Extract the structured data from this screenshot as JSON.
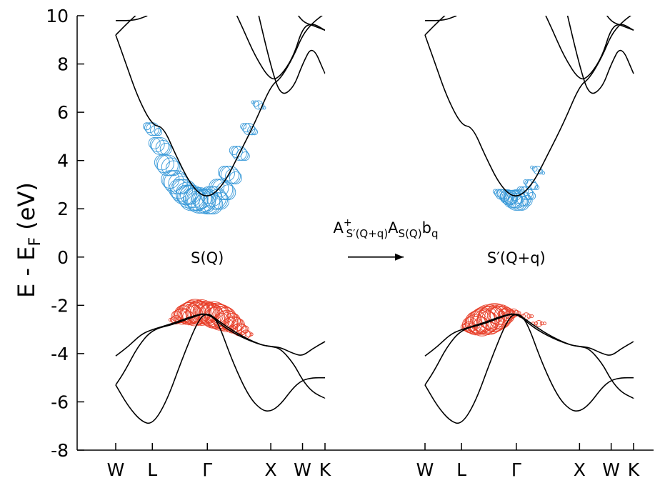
{
  "chart_data": {
    "type": "line",
    "ylabel": {
      "main": "E - E",
      "sub": "F",
      "tail": " (eV)"
    },
    "ylim": [
      -8,
      10
    ],
    "yticks": [
      -8,
      -6,
      -4,
      -2,
      0,
      2,
      4,
      6,
      8,
      10
    ],
    "grid": false,
    "kpath": [
      "W",
      "L",
      "Γ",
      "X",
      "W",
      "K"
    ],
    "kpos": [
      0,
      0.577,
      1.443,
      2.443,
      2.943,
      3.297
    ],
    "panels": [
      {
        "label": "S(Q)",
        "highlight_conduction": [
          [
            0.58,
            5.3,
            1.0
          ],
          [
            0.7,
            4.6,
            1.6
          ],
          [
            0.82,
            3.8,
            2.1
          ],
          [
            0.95,
            3.1,
            2.5
          ],
          [
            1.08,
            2.7,
            2.7
          ],
          [
            1.2,
            2.45,
            2.8
          ],
          [
            1.32,
            2.35,
            2.8
          ],
          [
            1.443,
            2.3,
            2.7
          ],
          [
            1.56,
            2.45,
            2.4
          ],
          [
            1.68,
            2.8,
            2.1
          ],
          [
            1.8,
            3.4,
            1.7
          ],
          [
            1.95,
            4.3,
            1.2
          ],
          [
            2.1,
            5.3,
            0.8
          ],
          [
            2.25,
            6.3,
            0.4
          ]
        ],
        "highlight_valence": [
          [
            0.95,
            -2.6,
            0.5
          ],
          [
            1.05,
            -2.45,
            1.4
          ],
          [
            1.15,
            -2.35,
            2.1
          ],
          [
            1.25,
            -2.3,
            2.6
          ],
          [
            1.35,
            -2.3,
            2.5
          ],
          [
            1.443,
            -2.3,
            2.1
          ],
          [
            1.55,
            -2.4,
            2.6
          ],
          [
            1.65,
            -2.5,
            2.5
          ],
          [
            1.75,
            -2.65,
            2.0
          ],
          [
            1.85,
            -2.8,
            1.5
          ],
          [
            1.95,
            -3.0,
            1.0
          ],
          [
            2.05,
            -3.2,
            0.5
          ]
        ]
      },
      {
        "label": "S′(Q+q)",
        "highlight_conduction": [
          [
            1.2,
            2.6,
            0.6
          ],
          [
            1.3,
            2.5,
            1.2
          ],
          [
            1.38,
            2.4,
            1.7
          ],
          [
            1.443,
            2.35,
            2.0
          ],
          [
            1.52,
            2.45,
            1.5
          ],
          [
            1.6,
            2.65,
            1.0
          ],
          [
            1.68,
            3.0,
            0.6
          ],
          [
            1.78,
            3.6,
            0.3
          ]
        ],
        "highlight_valence": [
          [
            0.7,
            -2.9,
            0.8
          ],
          [
            0.8,
            -2.8,
            1.9
          ],
          [
            0.9,
            -2.7,
            2.7
          ],
          [
            1.0,
            -2.6,
            3.0
          ],
          [
            1.1,
            -2.5,
            2.8
          ],
          [
            1.2,
            -2.42,
            2.0
          ],
          [
            1.3,
            -2.37,
            1.0
          ],
          [
            1.4,
            -2.32,
            0.5
          ],
          [
            1.6,
            -2.45,
            0.3
          ],
          [
            1.8,
            -2.75,
            0.2
          ]
        ]
      }
    ],
    "bands": [
      {
        "name": "b1",
        "points": [
          [
            0,
            -5.3
          ],
          [
            0.2,
            -6.2
          ],
          [
            0.4,
            -6.8
          ],
          [
            0.577,
            -6.95
          ],
          [
            0.8,
            -6.0
          ],
          [
            1.05,
            -4.2
          ],
          [
            1.3,
            -2.6
          ],
          [
            1.443,
            -2.3
          ],
          [
            1.6,
            -2.6
          ],
          [
            1.85,
            -4.4
          ],
          [
            2.1,
            -5.8
          ],
          [
            2.3,
            -6.35
          ],
          [
            2.443,
            -6.4
          ],
          [
            2.6,
            -6.1
          ],
          [
            2.8,
            -5.4
          ],
          [
            2.943,
            -5.1
          ],
          [
            3.1,
            -5.0
          ],
          [
            3.297,
            -5.0
          ]
        ]
      },
      {
        "name": "b2",
        "points": [
          [
            0,
            -5.3
          ],
          [
            0.15,
            -4.7
          ],
          [
            0.35,
            -3.7
          ],
          [
            0.577,
            -3.0
          ],
          [
            0.9,
            -2.8
          ],
          [
            1.2,
            -2.5
          ],
          [
            1.443,
            -2.3
          ],
          [
            1.7,
            -2.9
          ],
          [
            2.0,
            -3.35
          ],
          [
            2.3,
            -3.65
          ],
          [
            2.443,
            -3.7
          ],
          [
            2.6,
            -3.8
          ],
          [
            2.8,
            -4.4
          ],
          [
            2.943,
            -5.1
          ],
          [
            3.1,
            -5.6
          ],
          [
            3.297,
            -5.85
          ]
        ]
      },
      {
        "name": "b3",
        "points": [
          [
            0,
            -4.1
          ],
          [
            0.2,
            -3.7
          ],
          [
            0.4,
            -3.2
          ],
          [
            0.577,
            -3.0
          ],
          [
            0.9,
            -2.75
          ],
          [
            1.2,
            -2.45
          ],
          [
            1.443,
            -2.3
          ],
          [
            1.7,
            -2.8
          ],
          [
            2.0,
            -3.3
          ],
          [
            2.3,
            -3.65
          ],
          [
            2.443,
            -3.7
          ],
          [
            2.6,
            -3.75
          ],
          [
            2.8,
            -4.0
          ],
          [
            2.943,
            -4.1
          ],
          [
            3.1,
            -3.8
          ],
          [
            3.297,
            -3.5
          ]
        ]
      },
      {
        "name": "b4",
        "points": [
          [
            0,
            9.2
          ],
          [
            0.15,
            8.1
          ],
          [
            0.35,
            6.6
          ],
          [
            0.577,
            5.45
          ],
          [
            0.75,
            5.4
          ],
          [
            0.95,
            4.2
          ],
          [
            1.2,
            2.9
          ],
          [
            1.443,
            2.4
          ],
          [
            1.7,
            3.0
          ],
          [
            1.95,
            4.3
          ],
          [
            2.2,
            5.6
          ],
          [
            2.443,
            7.1
          ],
          [
            2.6,
            7.4
          ],
          [
            2.8,
            8.3
          ],
          [
            2.943,
            9.2
          ],
          [
            3.1,
            9.7
          ],
          [
            3.297,
            10.1
          ]
        ]
      },
      {
        "name": "b5",
        "points": [
          [
            0,
            9.2
          ],
          [
            0.15,
            9.6
          ],
          [
            0.35,
            10.1
          ],
          [
            0.55,
            10.6
          ]
        ]
      },
      {
        "name": "b6",
        "points": [
          [
            1.8,
            10.6
          ],
          [
            2.0,
            9.5
          ],
          [
            2.2,
            8.3
          ],
          [
            2.443,
            7.3
          ],
          [
            2.6,
            7.5
          ],
          [
            2.8,
            8.3
          ],
          [
            2.943,
            9.5
          ],
          [
            3.1,
            9.7
          ],
          [
            3.297,
            9.4
          ]
        ]
      },
      {
        "name": "b7",
        "points": [
          [
            2.2,
            10.6
          ],
          [
            2.443,
            7.9
          ],
          [
            2.6,
            6.65
          ],
          [
            2.8,
            7.0
          ],
          [
            2.943,
            8.0
          ],
          [
            3.1,
            8.8
          ],
          [
            3.297,
            7.6
          ]
        ]
      },
      {
        "name": "b8",
        "points": [
          [
            0,
            9.8
          ],
          [
            0.3,
            9.8
          ],
          [
            0.5,
            10.0
          ]
        ]
      },
      {
        "name": "b9",
        "points": [
          [
            2.8,
            10.3
          ],
          [
            2.943,
            9.75
          ],
          [
            3.1,
            9.6
          ],
          [
            3.297,
            9.4
          ]
        ]
      }
    ],
    "arrow_annotation": {
      "base": "A",
      "sup": "+",
      "sub1": "S′(Q+q)",
      "mid": "A",
      "sub2": "S(Q)",
      "tail": "b",
      "sub3": "q"
    },
    "colors": {
      "conduction": "#3a9ad9",
      "valence": "#e8402a",
      "band": "#000000"
    }
  }
}
